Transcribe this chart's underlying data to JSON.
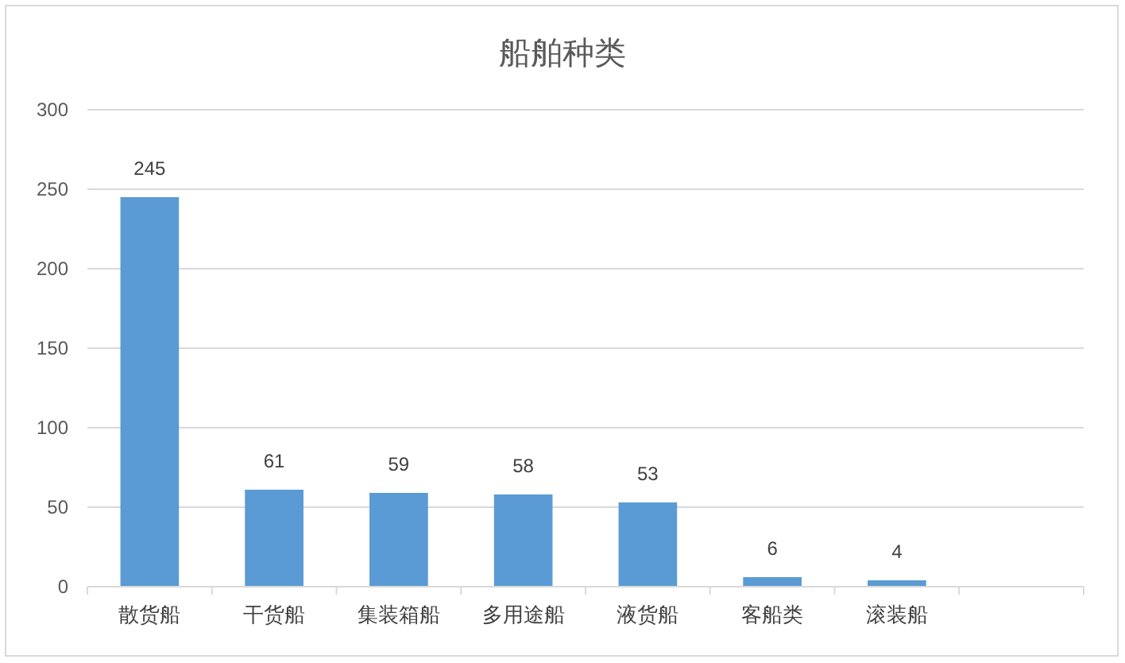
{
  "chart_data": {
    "type": "bar",
    "title": "船舶种类",
    "categories": [
      "散货船",
      "干货船",
      "集装箱船",
      "多用途船",
      "液货船",
      "客船类",
      "滚装船",
      null
    ],
    "values": [
      245,
      61,
      59,
      58,
      53,
      6,
      4,
      null
    ],
    "color": "#5b9bd5",
    "ylim": [
      0,
      300
    ],
    "yticks": [
      0,
      50,
      100,
      150,
      200,
      250,
      300
    ],
    "grid": "y",
    "data_labels": true
  }
}
